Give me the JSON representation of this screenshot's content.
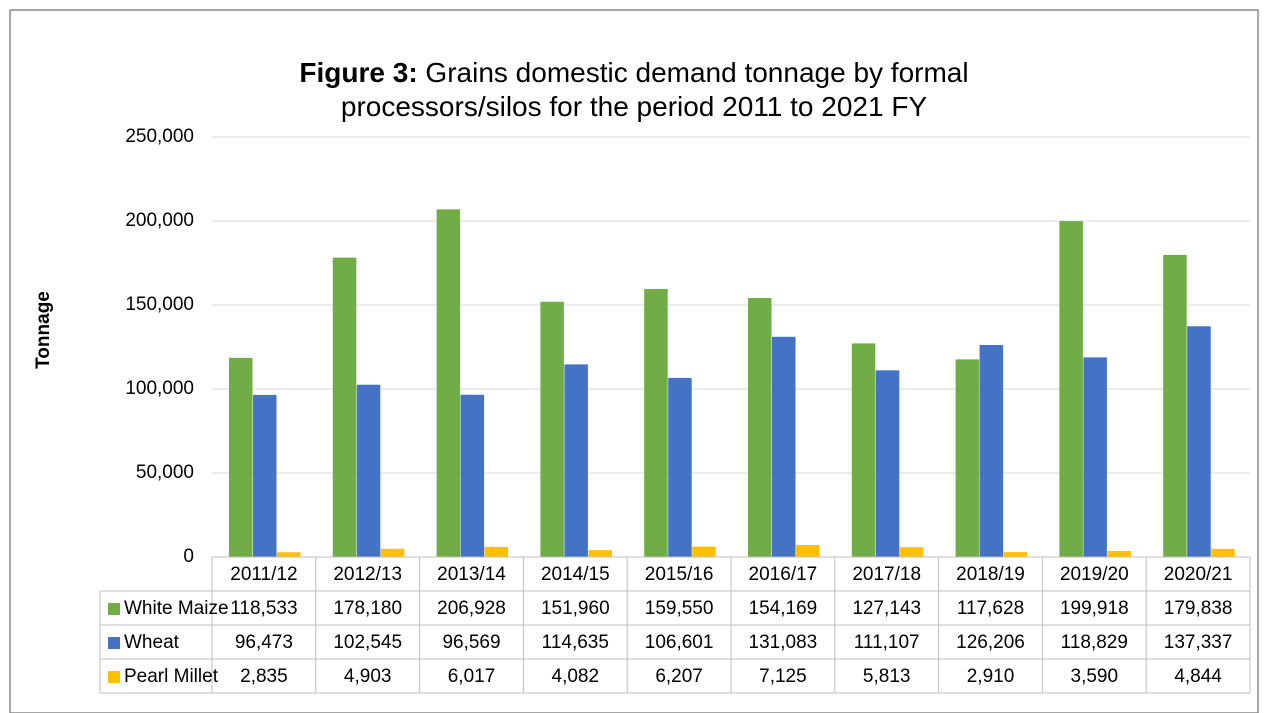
{
  "chart_data": {
    "type": "bar",
    "title_label": "Figure 3:",
    "title": "Grains domestic demand tonnage by formal processors/silos for the period 2011 to 2021 FY",
    "y_axis_label": "Tonnage",
    "categories": [
      "2011/12",
      "2012/13",
      "2013/14",
      "2014/15",
      "2015/16",
      "2016/17",
      "2017/18",
      "2018/19",
      "2019/20",
      "2020/21"
    ],
    "series": [
      {
        "name": "White Maize",
        "color": "#70ad47",
        "values": [
          118533,
          178180,
          206928,
          151960,
          159550,
          154169,
          127143,
          117628,
          199918,
          179838
        ],
        "value_labels": [
          "118,533",
          "178,180",
          "206,928",
          "151,960",
          "159,550",
          "154,169",
          "127,143",
          "117,628",
          "199,918",
          "179,838"
        ]
      },
      {
        "name": "Wheat",
        "color": "#4472c4",
        "values": [
          96473,
          102545,
          96569,
          114635,
          106601,
          131083,
          111107,
          126206,
          118829,
          137337
        ],
        "value_labels": [
          "96,473",
          "102,545",
          "96,569",
          "114,635",
          "106,601",
          "131,083",
          "111,107",
          "126,206",
          "118,829",
          "137,337"
        ]
      },
      {
        "name": "Pearl Millet",
        "color": "#ffc000",
        "values": [
          2835,
          4903,
          6017,
          4082,
          6207,
          7125,
          5813,
          2910,
          3590,
          4844
        ],
        "value_labels": [
          "2,835",
          "4,903",
          "6,017",
          "4,082",
          "6,207",
          "7,125",
          "5,813",
          "2,910",
          "3,590",
          "4,844"
        ]
      }
    ],
    "ylim": [
      0,
      250000
    ],
    "yticks": [
      0,
      {
        "value": 50000,
        "label": "50,000"
      },
      {
        "value": 100000,
        "label": "100,000"
      },
      {
        "value": 150000,
        "label": "150,000"
      },
      {
        "value": 200000,
        "label": "200,000"
      },
      {
        "value": 250000,
        "label": "250,000"
      }
    ],
    "grid": true,
    "data_table": true
  }
}
